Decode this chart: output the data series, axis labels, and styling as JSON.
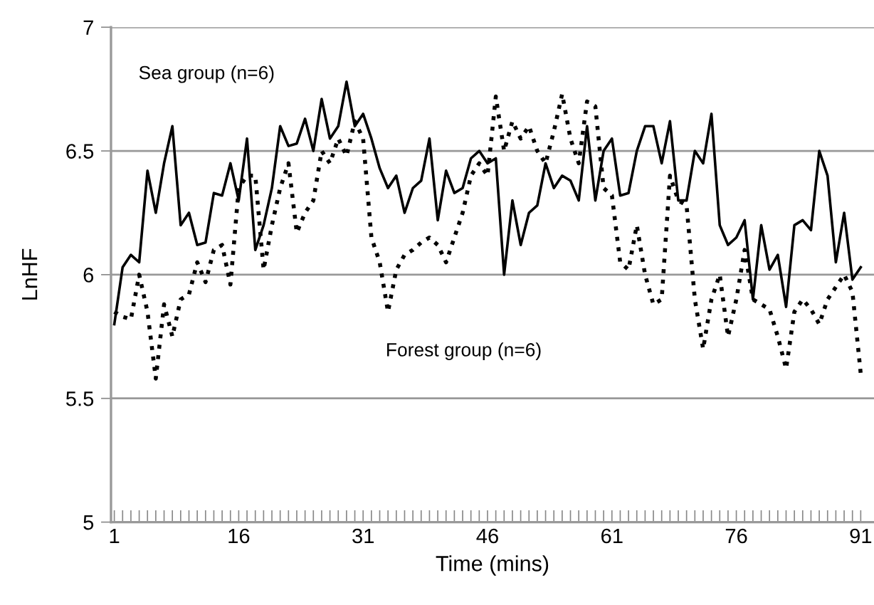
{
  "chart_data": {
    "type": "line",
    "xlabel": "Time (mins)",
    "ylabel": "LnHF",
    "x": [
      1,
      2,
      3,
      4,
      5,
      6,
      7,
      8,
      9,
      10,
      11,
      12,
      13,
      14,
      15,
      16,
      17,
      18,
      19,
      20,
      21,
      22,
      23,
      24,
      25,
      26,
      27,
      28,
      29,
      30,
      31,
      32,
      33,
      34,
      35,
      36,
      37,
      38,
      39,
      40,
      41,
      42,
      43,
      44,
      45,
      46,
      47,
      48,
      49,
      50,
      51,
      52,
      53,
      54,
      55,
      56,
      57,
      58,
      59,
      60,
      61,
      62,
      63,
      64,
      65,
      66,
      67,
      68,
      69,
      70,
      71,
      72,
      73,
      74,
      75,
      76,
      77,
      78,
      79,
      80,
      81,
      82,
      83,
      84,
      85,
      86,
      87,
      88,
      89,
      90,
      91
    ],
    "series": [
      {
        "name": "Sea group (n=6)",
        "color": "#000000",
        "line_style": "solid",
        "values": [
          5.8,
          6.03,
          6.08,
          6.05,
          6.42,
          6.25,
          6.45,
          6.6,
          6.2,
          6.25,
          6.12,
          6.13,
          6.33,
          6.32,
          6.45,
          6.3,
          6.55,
          6.1,
          6.2,
          6.35,
          6.6,
          6.52,
          6.53,
          6.63,
          6.5,
          6.71,
          6.55,
          6.6,
          6.78,
          6.6,
          6.65,
          6.55,
          6.43,
          6.35,
          6.4,
          6.25,
          6.35,
          6.38,
          6.55,
          6.22,
          6.42,
          6.33,
          6.35,
          6.47,
          6.5,
          6.45,
          6.47,
          6.0,
          6.3,
          6.12,
          6.25,
          6.28,
          6.45,
          6.35,
          6.4,
          6.38,
          6.3,
          6.6,
          6.3,
          6.5,
          6.55,
          6.32,
          6.33,
          6.5,
          6.6,
          6.6,
          6.45,
          6.62,
          6.3,
          6.3,
          6.5,
          6.45,
          6.65,
          6.2,
          6.12,
          6.15,
          6.22,
          5.9,
          6.2,
          6.02,
          6.08,
          5.87,
          6.2,
          6.22,
          6.18,
          6.5,
          6.4,
          6.05,
          6.25,
          5.98,
          6.03
        ]
      },
      {
        "name": "Forest group (n=6)",
        "color": "#000000",
        "line_style": "dotted",
        "values": [
          5.85,
          5.83,
          5.82,
          6.0,
          5.85,
          5.58,
          5.88,
          5.75,
          5.9,
          5.92,
          6.05,
          5.97,
          6.1,
          6.12,
          5.96,
          6.35,
          6.4,
          6.4,
          6.02,
          6.2,
          6.35,
          6.45,
          6.17,
          6.25,
          6.3,
          6.5,
          6.45,
          6.55,
          6.48,
          6.62,
          6.55,
          6.15,
          6.05,
          5.85,
          6.02,
          6.08,
          6.1,
          6.13,
          6.15,
          6.12,
          6.05,
          6.15,
          6.25,
          6.4,
          6.45,
          6.4,
          6.72,
          6.5,
          6.62,
          6.55,
          6.6,
          6.5,
          6.45,
          6.58,
          6.73,
          6.55,
          6.45,
          6.7,
          6.68,
          6.35,
          6.32,
          6.05,
          6.02,
          6.2,
          6.0,
          5.88,
          5.9,
          6.4,
          6.3,
          6.28,
          5.9,
          5.7,
          5.9,
          6.0,
          5.75,
          5.9,
          6.1,
          5.9,
          5.88,
          5.86,
          5.75,
          5.62,
          5.85,
          5.9,
          5.86,
          5.8,
          5.9,
          5.95,
          6.0,
          5.93,
          5.6
        ]
      }
    ],
    "xlim": [
      0.6,
      92.6
    ],
    "ylim": [
      5,
      7
    ],
    "xticks": [
      1,
      {
        "value": 2,
        "label": null
      },
      {
        "value": 3,
        "label": null
      },
      {
        "value": 4,
        "label": null
      },
      {
        "value": 5,
        "label": null
      },
      {
        "value": 6,
        "label": null
      },
      {
        "value": 7,
        "label": null
      },
      {
        "value": 8,
        "label": null
      },
      {
        "value": 9,
        "label": null
      },
      {
        "value": 10,
        "label": null
      },
      {
        "value": 11,
        "label": null
      },
      {
        "value": 12,
        "label": null
      },
      {
        "value": 13,
        "label": null
      },
      {
        "value": 14,
        "label": null
      },
      {
        "value": 15,
        "label": null
      },
      16,
      {
        "value": 17,
        "label": null
      },
      {
        "value": 18,
        "label": null
      },
      {
        "value": 19,
        "label": null
      },
      {
        "value": 20,
        "label": null
      },
      {
        "value": 21,
        "label": null
      },
      {
        "value": 22,
        "label": null
      },
      {
        "value": 23,
        "label": null
      },
      {
        "value": 24,
        "label": null
      },
      {
        "value": 25,
        "label": null
      },
      {
        "value": 26,
        "label": null
      },
      {
        "value": 27,
        "label": null
      },
      {
        "value": 28,
        "label": null
      },
      {
        "value": 29,
        "label": null
      },
      {
        "value": 30,
        "label": null
      },
      31,
      {
        "value": 32,
        "label": null
      },
      {
        "value": 33,
        "label": null
      },
      {
        "value": 34,
        "label": null
      },
      {
        "value": 35,
        "label": null
      },
      {
        "value": 36,
        "label": null
      },
      {
        "value": 37,
        "label": null
      },
      {
        "value": 38,
        "label": null
      },
      {
        "value": 39,
        "label": null
      },
      {
        "value": 40,
        "label": null
      },
      {
        "value": 41,
        "label": null
      },
      {
        "value": 42,
        "label": null
      },
      {
        "value": 43,
        "label": null
      },
      {
        "value": 44,
        "label": null
      },
      {
        "value": 45,
        "label": null
      },
      46,
      {
        "value": 47,
        "label": null
      },
      {
        "value": 48,
        "label": null
      },
      {
        "value": 49,
        "label": null
      },
      {
        "value": 50,
        "label": null
      },
      {
        "value": 51,
        "label": null
      },
      {
        "value": 52,
        "label": null
      },
      {
        "value": 53,
        "label": null
      },
      {
        "value": 54,
        "label": null
      },
      {
        "value": 55,
        "label": null
      },
      {
        "value": 56,
        "label": null
      },
      {
        "value": 57,
        "label": null
      },
      {
        "value": 58,
        "label": null
      },
      {
        "value": 59,
        "label": null
      },
      {
        "value": 60,
        "label": null
      },
      61,
      {
        "value": 62,
        "label": null
      },
      {
        "value": 63,
        "label": null
      },
      {
        "value": 64,
        "label": null
      },
      {
        "value": 65,
        "label": null
      },
      {
        "value": 66,
        "label": null
      },
      {
        "value": 67,
        "label": null
      },
      {
        "value": 68,
        "label": null
      },
      {
        "value": 69,
        "label": null
      },
      {
        "value": 70,
        "label": null
      },
      {
        "value": 71,
        "label": null
      },
      {
        "value": 72,
        "label": null
      },
      {
        "value": 73,
        "label": null
      },
      {
        "value": 74,
        "label": null
      },
      {
        "value": 75,
        "label": null
      },
      76,
      {
        "value": 77,
        "label": null
      },
      {
        "value": 78,
        "label": null
      },
      {
        "value": 79,
        "label": null
      },
      {
        "value": 80,
        "label": null
      },
      {
        "value": 81,
        "label": null
      },
      {
        "value": 82,
        "label": null
      },
      {
        "value": 83,
        "label": null
      },
      {
        "value": 84,
        "label": null
      },
      {
        "value": 85,
        "label": null
      },
      {
        "value": 86,
        "label": null
      },
      {
        "value": 87,
        "label": null
      },
      {
        "value": 88,
        "label": null
      },
      {
        "value": 89,
        "label": null
      },
      {
        "value": 90,
        "label": null
      },
      91
    ],
    "yticks": [
      5,
      5.5,
      6,
      6.5,
      7
    ],
    "grid": "y",
    "legend": false,
    "marker": "none"
  }
}
